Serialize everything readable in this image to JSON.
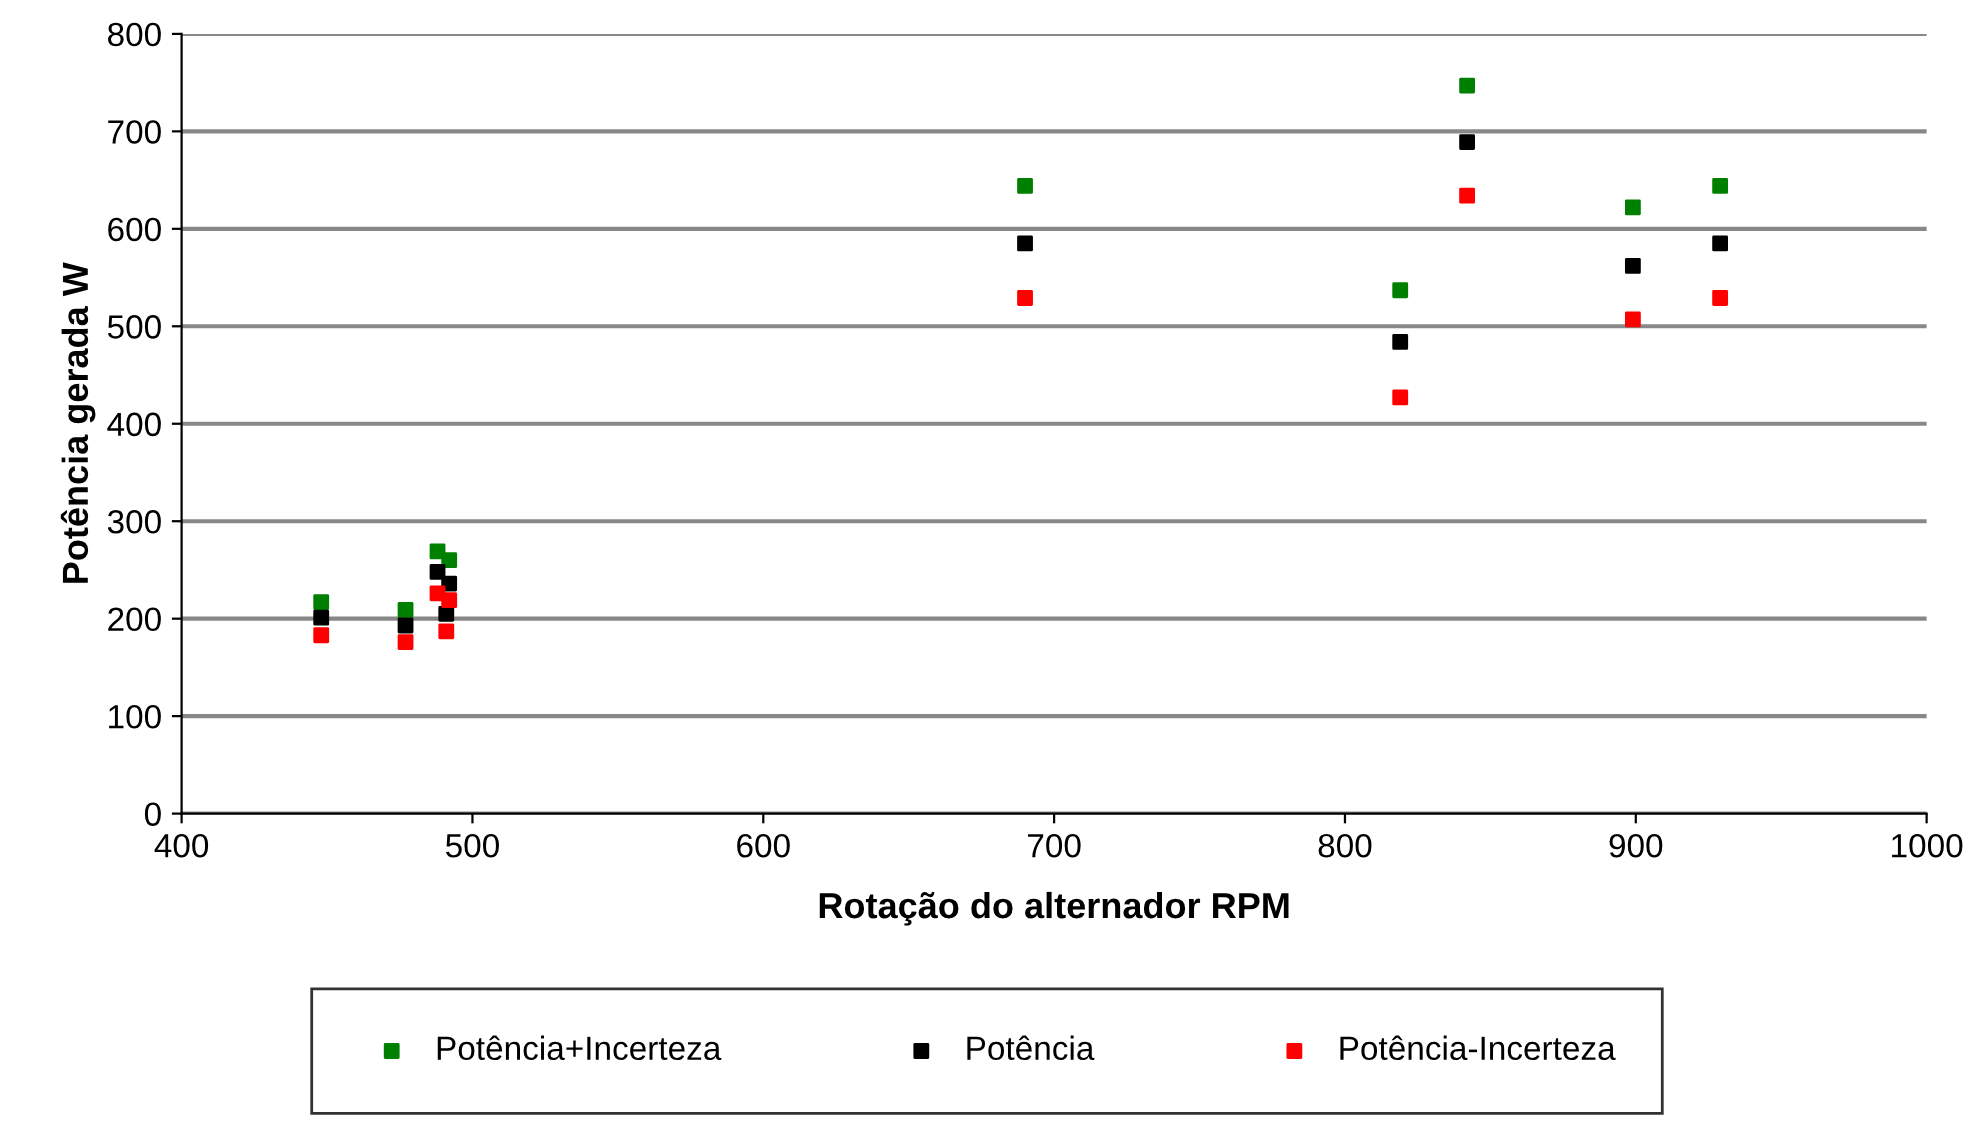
{
  "chart_data": {
    "type": "scatter",
    "xlabel": "Rotação do alternador RPM",
    "ylabel": "Potência gerada W",
    "x": [
      448,
      477,
      488,
      492,
      491,
      690,
      819,
      842,
      899,
      929
    ],
    "series": [
      {
        "name": "Potência+Incerteza",
        "color": "#008000",
        "values": [
          217,
          209,
          269,
          260,
          null,
          644,
          537,
          747,
          622,
          644
        ]
      },
      {
        "name": "Potência",
        "color": "#000000",
        "values": [
          201,
          193,
          248,
          236,
          205,
          585,
          484,
          689,
          562,
          585
        ]
      },
      {
        "name": "Potência-Incerteza",
        "color": "#ff0000",
        "values": [
          183,
          176,
          226,
          219,
          187,
          529,
          427,
          634,
          507,
          529
        ]
      }
    ],
    "xlim": [
      400,
      1000
    ],
    "xticks": [
      400,
      500,
      600,
      700,
      800,
      900,
      1000
    ],
    "ylim": [
      0,
      800
    ],
    "yticks": [
      0,
      100,
      200,
      300,
      400,
      500,
      600,
      700,
      800
    ],
    "grid": "y",
    "legend": "bottom",
    "marker": "square"
  }
}
